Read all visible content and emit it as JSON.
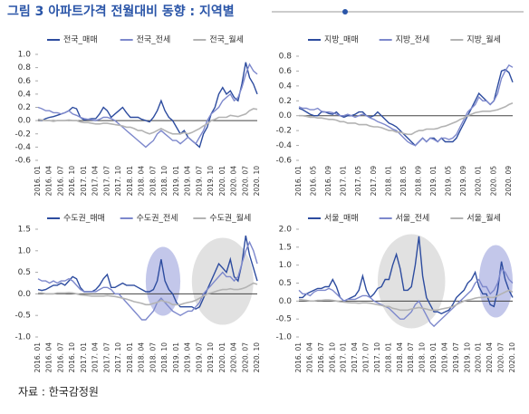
{
  "title": "그림 3 아파트가격 전월대비 동향 : 지역별",
  "source": "자료 : 한국감정원",
  "chart_data": [
    {
      "type": "line",
      "ylim": [
        -0.6,
        1.0
      ],
      "yticks": [
        {
          "value": 1,
          "label": "1.0"
        },
        0.8,
        0.6,
        0.4,
        0.2,
        {
          "value": 0,
          "label": "0.0"
        },
        -0.2,
        -0.4,
        -0.6
      ],
      "categories": [
        "2016. 01",
        null,
        null,
        "2016. 04",
        null,
        null,
        "2016. 07",
        null,
        null,
        "2016. 10",
        null,
        null,
        "2017. 01",
        null,
        null,
        "2017. 04",
        null,
        null,
        "2017. 07",
        null,
        null,
        "2017. 10",
        null,
        null,
        "2018. 01",
        null,
        null,
        "2018. 04",
        null,
        null,
        "2018. 07",
        null,
        null,
        "2018. 10",
        null,
        null,
        "2019. 01",
        null,
        null,
        "2019. 04",
        null,
        null,
        "2019. 07",
        null,
        null,
        "2019. 10",
        null,
        null,
        "2020. 01",
        null,
        null,
        "2020. 04",
        null,
        null,
        "2020. 07",
        null,
        null,
        "2020. 10"
      ],
      "series": [
        {
          "name": "전국_매매",
          "color": "#2d4c9f",
          "values": [
            0.02,
            0,
            0.03,
            0.05,
            0.06,
            0.08,
            0.1,
            0.12,
            0.15,
            0.2,
            0.18,
            0.05,
            0.01,
            0.02,
            0.03,
            0.03,
            0.1,
            0.2,
            0.15,
            0.05,
            0.1,
            0.15,
            0.2,
            0.12,
            0.05,
            0.05,
            0.05,
            0.02,
            0,
            -0.02,
            0.05,
            0.15,
            0.3,
            0.15,
            0.05,
            0,
            -0.1,
            -0.2,
            -0.15,
            -0.25,
            -0.3,
            -0.35,
            -0.4,
            -0.2,
            -0.1,
            0.1,
            0.2,
            0.4,
            0.5,
            0.4,
            0.45,
            0.35,
            0.3,
            0.55,
            0.88,
            0.65,
            0.55,
            0.4
          ]
        },
        {
          "name": "전국_전세",
          "color": "#7d88cc",
          "values": [
            0.2,
            0.18,
            0.15,
            0.15,
            0.12,
            0.12,
            0.1,
            0.12,
            0.15,
            0.1,
            0.08,
            0.05,
            0.03,
            0.02,
            0.01,
            0,
            0.02,
            0.05,
            0.05,
            0.03,
            0,
            -0.05,
            -0.1,
            -0.15,
            -0.2,
            -0.25,
            -0.3,
            -0.35,
            -0.4,
            -0.35,
            -0.3,
            -0.2,
            -0.15,
            -0.2,
            -0.25,
            -0.3,
            -0.3,
            -0.35,
            -0.3,
            -0.25,
            -0.3,
            -0.35,
            -0.25,
            -0.15,
            0,
            0.1,
            0.15,
            0.2,
            0.3,
            0.35,
            0.4,
            0.3,
            0.35,
            0.5,
            0.7,
            0.85,
            0.75,
            0.7
          ]
        },
        {
          "name": "전국_월세",
          "color": "#b3b3b3",
          "values": [
            0.02,
            0.01,
            0,
            0,
            -0.01,
            0,
            0,
            0,
            0.01,
            0,
            0,
            -0.02,
            -0.03,
            -0.03,
            -0.04,
            -0.05,
            -0.05,
            -0.04,
            -0.04,
            -0.05,
            -0.06,
            -0.07,
            -0.08,
            -0.1,
            -0.1,
            -0.12,
            -0.15,
            -0.15,
            -0.18,
            -0.2,
            -0.18,
            -0.15,
            -0.12,
            -0.15,
            -0.18,
            -0.2,
            -0.2,
            -0.2,
            -0.18,
            -0.2,
            -0.18,
            -0.15,
            -0.12,
            -0.08,
            -0.05,
            0,
            0.02,
            0.05,
            0.05,
            0.05,
            0.08,
            0.07,
            0.06,
            0.08,
            0.1,
            0.15,
            0.18,
            0.17
          ]
        }
      ]
    },
    {
      "type": "line",
      "ylim": [
        -0.6,
        0.8
      ],
      "yticks": [
        0.8,
        0.6,
        0.4,
        0.2,
        {
          "value": 0,
          "label": "0.0"
        },
        -0.2,
        -0.4,
        -0.6
      ],
      "categories": [
        "2016. 01",
        null,
        null,
        null,
        "2016. 05",
        null,
        null,
        null,
        "2016. 09",
        null,
        null,
        null,
        "2017. 01",
        null,
        null,
        null,
        "2017. 05",
        null,
        null,
        null,
        "2017. 09",
        null,
        null,
        null,
        "2018. 01",
        null,
        null,
        null,
        "2018. 05",
        null,
        null,
        null,
        "2018. 09",
        null,
        null,
        null,
        "2019. 01",
        null,
        null,
        null,
        "2019. 05",
        null,
        null,
        null,
        "2019. 09",
        null,
        null,
        null,
        "2020. 01",
        null,
        null,
        null,
        "2020. 05",
        null,
        null,
        null,
        "2020. 09",
        null
      ],
      "series": [
        {
          "name": "지방_매매",
          "color": "#2d4c9f",
          "values": [
            0.1,
            0.08,
            0.05,
            0.02,
            0,
            0,
            0.05,
            0.05,
            0.03,
            0.02,
            0.05,
            0,
            -0.02,
            0,
            0,
            0.02,
            0.05,
            0.05,
            0,
            -0.02,
            0,
            0.05,
            0,
            -0.05,
            -0.1,
            -0.12,
            -0.15,
            -0.2,
            -0.25,
            -0.3,
            -0.35,
            -0.4,
            -0.35,
            -0.3,
            -0.35,
            -0.3,
            -0.3,
            -0.35,
            -0.3,
            -0.35,
            -0.35,
            -0.35,
            -0.3,
            -0.2,
            -0.1,
            0,
            0.1,
            0.2,
            0.3,
            0.25,
            0.2,
            0.15,
            0.2,
            0.4,
            0.6,
            0.62,
            0.58,
            0.45
          ]
        },
        {
          "name": "지방_전세",
          "color": "#7d88cc",
          "values": [
            0.12,
            0.1,
            0.1,
            0.08,
            0.08,
            0.1,
            0.06,
            0.05,
            0.05,
            0.04,
            0.02,
            0,
            0,
            0.02,
            0,
            -0.02,
            0,
            0.02,
            0,
            -0.03,
            -0.05,
            -0.08,
            -0.1,
            -0.12,
            -0.15,
            -0.18,
            -0.2,
            -0.25,
            -0.3,
            -0.35,
            -0.38,
            -0.4,
            -0.35,
            -0.3,
            -0.35,
            -0.3,
            -0.32,
            -0.35,
            -0.3,
            -0.3,
            -0.32,
            -0.3,
            -0.25,
            -0.15,
            -0.05,
            0.05,
            0.1,
            0.15,
            0.25,
            0.2,
            0.2,
            0.15,
            0.2,
            0.3,
            0.5,
            0.6,
            0.68,
            0.65
          ]
        },
        {
          "name": "지방_월세",
          "color": "#b3b3b3",
          "values": [
            0,
            0,
            -0.01,
            -0.02,
            -0.02,
            -0.03,
            -0.03,
            -0.04,
            -0.05,
            -0.05,
            -0.06,
            -0.08,
            -0.08,
            -0.1,
            -0.1,
            -0.1,
            -0.12,
            -0.12,
            -0.12,
            -0.14,
            -0.15,
            -0.15,
            -0.16,
            -0.18,
            -0.2,
            -0.2,
            -0.22,
            -0.22,
            -0.24,
            -0.25,
            -0.25,
            -0.22,
            -0.2,
            -0.2,
            -0.18,
            -0.18,
            -0.18,
            -0.17,
            -0.15,
            -0.14,
            -0.12,
            -0.1,
            -0.08,
            -0.05,
            -0.03,
            0,
            0.02,
            0.04,
            0.05,
            0.06,
            0.06,
            0.06,
            0.07,
            0.08,
            0.1,
            0.12,
            0.15,
            0.17
          ]
        }
      ]
    },
    {
      "type": "line",
      "ylim": [
        -1,
        1.5
      ],
      "yticks": [
        1.5,
        {
          "value": 1,
          "label": "1.0"
        },
        0.5,
        {
          "value": 0,
          "label": "0.0"
        },
        -0.5,
        {
          "value": -1,
          "label": "-1.0"
        }
      ],
      "categories": [
        "2016. 01",
        null,
        null,
        "2016. 04",
        null,
        null,
        "2016. 07",
        null,
        null,
        "2016. 10",
        null,
        null,
        "2017. 01",
        null,
        null,
        "2017. 04",
        null,
        null,
        "2017. 07",
        null,
        null,
        "2017. 10",
        null,
        null,
        "2018. 01",
        null,
        null,
        "2018. 04",
        null,
        null,
        "2018. 07",
        null,
        null,
        "2018. 10",
        null,
        null,
        "2019. 01",
        null,
        null,
        "2019. 04",
        null,
        null,
        "2019. 07",
        null,
        null,
        "2019. 10",
        null,
        null,
        "2020. 01",
        null,
        null,
        "2020. 04",
        null,
        null,
        "2020. 07",
        null,
        null,
        "2020. 10"
      ],
      "series": [
        {
          "name": "수도권_매매",
          "color": "#2d4c9f",
          "values": [
            0.1,
            0.08,
            0.1,
            0.15,
            0.2,
            0.2,
            0.25,
            0.2,
            0.3,
            0.4,
            0.35,
            0.15,
            0.05,
            0.05,
            0.05,
            0.1,
            0.2,
            0.35,
            0.45,
            0.15,
            0.15,
            0.2,
            0.25,
            0.2,
            0.2,
            0.2,
            0.15,
            0.1,
            0.05,
            0.05,
            0.1,
            0.3,
            0.8,
            0.3,
            0.1,
            0,
            -0.2,
            -0.3,
            -0.3,
            -0.3,
            -0.3,
            -0.35,
            -0.3,
            -0.1,
            0.1,
            0.3,
            0.5,
            0.7,
            0.6,
            0.5,
            0.8,
            0.4,
            0.3,
            0.7,
            1.35,
            0.9,
            0.6,
            0.3
          ]
        },
        {
          "name": "수도권_전세",
          "color": "#7d88cc",
          "values": [
            0.35,
            0.3,
            0.3,
            0.25,
            0.3,
            0.25,
            0.3,
            0.3,
            0.35,
            0.3,
            0.2,
            0.1,
            0.05,
            0.05,
            0.05,
            0.05,
            0.1,
            0.15,
            0.15,
            0.1,
            0,
            0,
            -0.1,
            -0.2,
            -0.3,
            -0.4,
            -0.5,
            -0.6,
            -0.6,
            -0.5,
            -0.4,
            -0.2,
            -0.1,
            -0.2,
            -0.3,
            -0.4,
            -0.45,
            -0.5,
            -0.45,
            -0.4,
            -0.4,
            -0.3,
            -0.2,
            0,
            0.1,
            0.2,
            0.3,
            0.4,
            0.5,
            0.4,
            0.4,
            0.3,
            0.4,
            0.7,
            1,
            1.2,
            1,
            0.7
          ]
        },
        {
          "name": "수도권_월세",
          "color": "#b3b3b3",
          "values": [
            0.02,
            0.02,
            0,
            0,
            0,
            0.02,
            0.02,
            0.02,
            0.03,
            0.02,
            0,
            -0.02,
            -0.03,
            -0.04,
            -0.05,
            -0.05,
            -0.05,
            -0.05,
            -0.04,
            -0.05,
            -0.06,
            -0.08,
            -0.1,
            -0.12,
            -0.15,
            -0.18,
            -0.2,
            -0.22,
            -0.25,
            -0.25,
            -0.22,
            -0.2,
            -0.15,
            -0.18,
            -0.2,
            -0.25,
            -0.25,
            -0.25,
            -0.22,
            -0.2,
            -0.18,
            -0.15,
            -0.1,
            -0.05,
            0,
            0.02,
            0.05,
            0.08,
            0.1,
            0.1,
            0.12,
            0.1,
            0.1,
            0.12,
            0.15,
            0.2,
            0.25,
            0.22
          ]
        }
      ]
    },
    {
      "type": "line",
      "ylim": [
        -1,
        2
      ],
      "yticks": [
        {
          "value": 2,
          "label": "2.0"
        },
        1.5,
        {
          "value": 1,
          "label": "1.0"
        },
        0.5,
        {
          "value": 0,
          "label": "0.0"
        },
        -0.5,
        {
          "value": -1,
          "label": "-1.0"
        }
      ],
      "categories": [
        "2016. 01",
        null,
        null,
        "2016. 04",
        null,
        null,
        "2016. 07",
        null,
        null,
        "2016. 10",
        null,
        null,
        "2017. 01",
        null,
        null,
        "2017. 04",
        null,
        null,
        "2017. 07",
        null,
        null,
        "2017. 10",
        null,
        null,
        "2018. 01",
        null,
        null,
        "2018. 04",
        null,
        null,
        "2018. 07",
        null,
        null,
        "2018. 10",
        null,
        null,
        "2019. 01",
        null,
        null,
        "2019. 04",
        null,
        null,
        "2019. 07",
        null,
        null,
        "2019. 10",
        null,
        null,
        "2020. 01",
        null,
        null,
        "2020. 04",
        null,
        null,
        "2020. 07",
        null,
        null,
        "2020. 10"
      ],
      "series": [
        {
          "name": "서울_매매",
          "color": "#2d4c9f",
          "values": [
            0.1,
            0.1,
            0.2,
            0.25,
            0.3,
            0.35,
            0.35,
            0.4,
            0.4,
            0.6,
            0.4,
            0.1,
            0,
            0.05,
            0.1,
            0.15,
            0.3,
            0.7,
            0.3,
            0.1,
            0.2,
            0.35,
            0.4,
            0.6,
            0.6,
            1,
            1.3,
            0.9,
            0.3,
            0.3,
            0.4,
            1,
            1.8,
            0.7,
            0.1,
            -0.1,
            -0.3,
            -0.3,
            -0.35,
            -0.3,
            -0.25,
            -0.1,
            0.1,
            0.2,
            0.3,
            0.5,
            0.6,
            0.8,
            0.4,
            0.2,
            0.2,
            -0.1,
            -0.15,
            0.3,
            1.1,
            0.6,
            0.3,
            0.1
          ]
        },
        {
          "name": "서울_전세",
          "color": "#7d88cc",
          "values": [
            0.3,
            0.2,
            0.2,
            0.15,
            0.25,
            0.3,
            0.3,
            0.3,
            0.35,
            0.3,
            0.2,
            0.1,
            0,
            0.05,
            0.05,
            0.05,
            0.1,
            0.15,
            0.15,
            0.1,
            0,
            -0.05,
            -0.1,
            -0.15,
            -0.2,
            -0.3,
            -0.4,
            -0.5,
            -0.5,
            -0.4,
            -0.3,
            -0.1,
            0,
            -0.2,
            -0.4,
            -0.6,
            -0.7,
            -0.6,
            -0.5,
            -0.4,
            -0.3,
            -0.2,
            -0.1,
            0,
            0.1,
            0.2,
            0.3,
            0.5,
            0.6,
            0.4,
            0.4,
            0.2,
            0.3,
            0.5,
            0.9,
            0.8,
            0.6,
            0.5
          ]
        },
        {
          "name": "서울_월세",
          "color": "#b3b3b3",
          "values": [
            0.05,
            0.03,
            0.02,
            0,
            0,
            0.02,
            0.02,
            0.03,
            0.03,
            0.02,
            0,
            -0.02,
            -0.03,
            -0.04,
            -0.05,
            -0.05,
            -0.06,
            -0.05,
            -0.05,
            -0.06,
            -0.08,
            -0.1,
            -0.12,
            -0.15,
            -0.15,
            -0.2,
            -0.22,
            -0.25,
            -0.25,
            -0.25,
            -0.22,
            -0.2,
            -0.18,
            -0.2,
            -0.22,
            -0.25,
            -0.25,
            -0.25,
            -0.22,
            -0.2,
            -0.18,
            -0.15,
            -0.1,
            -0.05,
            0,
            0.03,
            0.05,
            0.08,
            0.1,
            0.1,
            0.12,
            0.1,
            0.1,
            0.15,
            0.2,
            0.25,
            0.3,
            0.25
          ]
        }
      ]
    }
  ]
}
